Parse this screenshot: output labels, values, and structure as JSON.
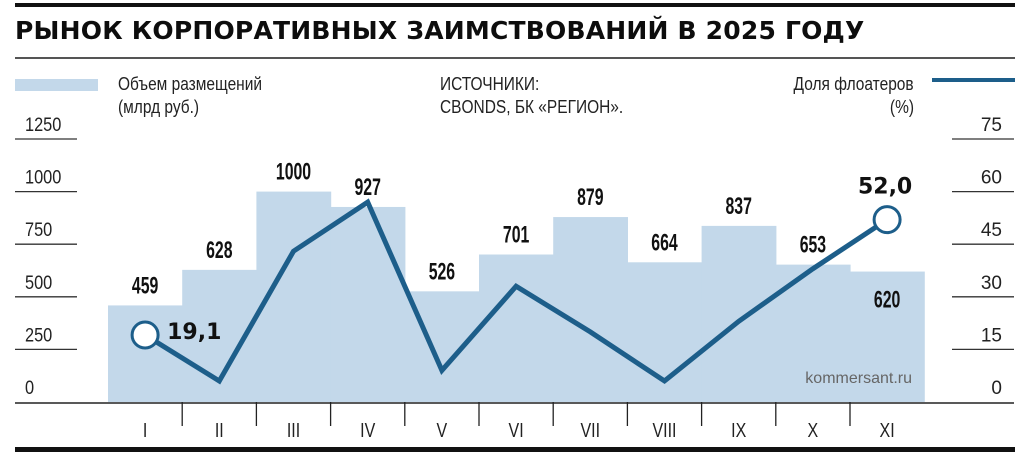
{
  "title": "РЫНОК КОРПОРАТИВНЫХ ЗАИМСТВОВАНИЙ В 2025 ГОДУ",
  "legend": {
    "bars_label_line1": "Объем размещений",
    "bars_label_line2": "(млрд руб.)",
    "line_label_line1": "Доля флоатеров",
    "line_label_line2": "(%)"
  },
  "source": {
    "line1": "ИСТОЧНИКИ:",
    "line2": "CBONDS, БК «РЕГИОН»."
  },
  "watermark": "kommersant.ru",
  "colors": {
    "bar_fill": "#c3d8ea",
    "line": "#1d5e8a",
    "text": "#111111"
  },
  "chart_data": {
    "type": "bar",
    "title": "РЫНОК КОРПОРАТИВНЫХ ЗАИМСТВОВАНИЙ В 2025 ГОДУ",
    "categories": [
      "I",
      "II",
      "III",
      "IV",
      "V",
      "VI",
      "VII",
      "VIII",
      "IX",
      "X",
      "XI"
    ],
    "series": [
      {
        "name": "Объем размещений (млрд руб.)",
        "type": "bar",
        "axis": "left",
        "values": [
          459,
          628,
          1000,
          927,
          526,
          701,
          879,
          664,
          837,
          653,
          620
        ],
        "labels": [
          "459",
          "628",
          "1000",
          "927",
          "526",
          "701",
          "879",
          "664",
          "837",
          "653",
          "620"
        ]
      },
      {
        "name": "Доля флоатеров (%)",
        "type": "line",
        "axis": "right",
        "values": [
          19.1,
          6,
          43,
          57,
          9,
          33,
          20,
          6,
          23,
          38,
          52.0
        ],
        "annotations": [
          {
            "index": 0,
            "text": "19,1"
          },
          {
            "index": 10,
            "text": "52,0"
          }
        ]
      }
    ],
    "left_axis": {
      "ticks": [
        0,
        250,
        500,
        750,
        1000,
        1250
      ],
      "ylim": [
        0,
        1250
      ],
      "label": "Объем размещений (млрд руб.)"
    },
    "right_axis": {
      "ticks": [
        0,
        15,
        30,
        45,
        60,
        75
      ],
      "ylim": [
        0,
        75
      ],
      "label": "Доля флоатеров (%)"
    },
    "xlabel": "",
    "grid": false,
    "legend_position": "top"
  }
}
